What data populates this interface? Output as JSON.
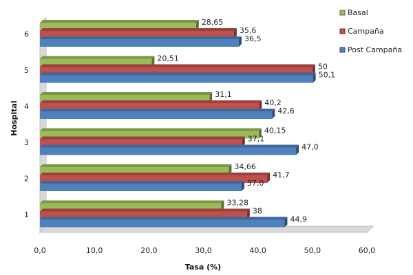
{
  "chart_data": {
    "type": "bar",
    "orientation": "horizontal",
    "style": "3d-clustered",
    "categories": [
      "1",
      "2",
      "3",
      "4",
      "5",
      "6"
    ],
    "series": [
      {
        "name": "Basal",
        "color": "#9bbb59",
        "values": [
          33.28,
          34.66,
          40.15,
          31.1,
          20.51,
          28.65
        ],
        "labels": [
          "33,28",
          "34,66",
          "40,15",
          "31,1",
          "20,51",
          "28,65"
        ]
      },
      {
        "name": "Campaña",
        "color": "#c0504d",
        "values": [
          38,
          41.7,
          37.1,
          40.2,
          50,
          35.6
        ],
        "labels": [
          "38",
          "41,7",
          "37,1",
          "40,2",
          "50",
          "35,6"
        ]
      },
      {
        "name": "Post Campaña",
        "color": "#4f81bd",
        "values": [
          44.9,
          37.0,
          47.0,
          42.6,
          50.1,
          36.5
        ],
        "labels": [
          "44,9",
          "37,0",
          "47,0",
          "42,6",
          "50,1",
          "36,5"
        ]
      }
    ],
    "xlabel": "Tasa (%)",
    "ylabel": "Hospital",
    "xlim": [
      0,
      60
    ],
    "xticks": [
      "0,0",
      "10,0",
      "20,0",
      "30,0",
      "40,0",
      "50,0",
      "60,0"
    ],
    "legend_position": "right",
    "grid": false
  }
}
